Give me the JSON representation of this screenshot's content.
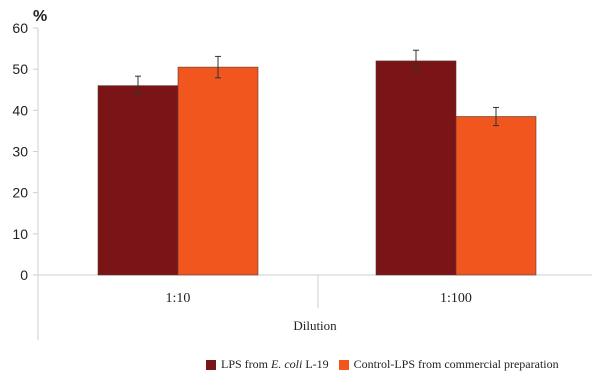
{
  "chart_data": {
    "type": "bar",
    "ylabel": "%",
    "xlabel": "Dilution",
    "categories": [
      "1:10",
      "1:100"
    ],
    "ylim": [
      0,
      60
    ],
    "yticks": [
      "0",
      "10",
      "20",
      "30",
      "40",
      "50",
      "60"
    ],
    "series": [
      {
        "name": "LPS from E. coli L-19",
        "name_prefix": "LPS from ",
        "name_italic": "E. coli",
        "name_suffix": " L-19",
        "color": "#7b1416",
        "values": [
          46,
          52
        ],
        "errors": [
          2.3,
          2.6
        ]
      },
      {
        "name": "Control-LPS from commercial preparation",
        "color": "#f0561e",
        "values": [
          50.5,
          38.5
        ],
        "errors": [
          2.6,
          2.2
        ]
      }
    ],
    "grid": false,
    "legend": "bottom"
  }
}
